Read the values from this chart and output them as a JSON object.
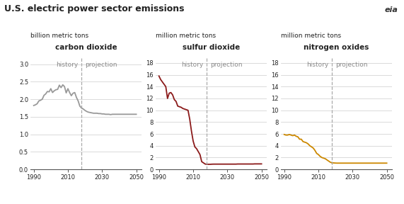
{
  "title": "U.S. electric power sector emissions",
  "panels": [
    {
      "subtitle": "carbon dioxide",
      "unit_label": "billion metric tons",
      "color": "#999999",
      "ylim": [
        0.0,
        3.2
      ],
      "yticks": [
        0.0,
        0.5,
        1.0,
        1.5,
        2.0,
        2.5,
        3.0
      ],
      "yticklabels": [
        "0.0",
        "0.5",
        "1.0",
        "1.5",
        "2.0",
        "2.5",
        "3.0"
      ],
      "history_end": 2018,
      "history_data": {
        "years": [
          1990,
          1991,
          1992,
          1993,
          1994,
          1995,
          1996,
          1997,
          1998,
          1999,
          2000,
          2001,
          2002,
          2003,
          2004,
          2005,
          2006,
          2007,
          2008,
          2009,
          2010,
          2011,
          2012,
          2013,
          2014,
          2015,
          2016,
          2017,
          2018
        ],
        "values": [
          1.82,
          1.84,
          1.87,
          1.95,
          1.97,
          2.0,
          2.11,
          2.15,
          2.22,
          2.21,
          2.3,
          2.19,
          2.24,
          2.27,
          2.28,
          2.4,
          2.33,
          2.41,
          2.36,
          2.18,
          2.3,
          2.19,
          2.1,
          2.17,
          2.19,
          2.05,
          1.95,
          1.8,
          1.75
        ]
      },
      "projection_data": {
        "years": [
          2018,
          2019,
          2020,
          2021,
          2022,
          2023,
          2024,
          2025,
          2026,
          2027,
          2028,
          2029,
          2030,
          2031,
          2032,
          2033,
          2034,
          2035,
          2036,
          2037,
          2038,
          2039,
          2040,
          2041,
          2042,
          2043,
          2044,
          2045,
          2046,
          2047,
          2048,
          2049,
          2050
        ],
        "values": [
          1.75,
          1.72,
          1.68,
          1.65,
          1.63,
          1.62,
          1.61,
          1.6,
          1.6,
          1.6,
          1.59,
          1.59,
          1.58,
          1.58,
          1.57,
          1.57,
          1.57,
          1.56,
          1.57,
          1.57,
          1.57,
          1.57,
          1.57,
          1.57,
          1.57,
          1.57,
          1.57,
          1.57,
          1.57,
          1.57,
          1.57,
          1.57,
          1.57
        ]
      }
    },
    {
      "subtitle": "sulfur dioxide",
      "unit_label": "million metric tons",
      "color": "#8B1A1A",
      "ylim": [
        0,
        19
      ],
      "yticks": [
        0,
        2,
        4,
        6,
        8,
        10,
        12,
        14,
        16,
        18
      ],
      "yticklabels": [
        "0",
        "2",
        "4",
        "6",
        "8",
        "10",
        "12",
        "14",
        "16",
        "18"
      ],
      "history_end": 2018,
      "history_data": {
        "years": [
          1990,
          1991,
          1992,
          1993,
          1994,
          1995,
          1996,
          1997,
          1998,
          1999,
          2000,
          2001,
          2002,
          2003,
          2004,
          2005,
          2006,
          2007,
          2008,
          2009,
          2010,
          2011,
          2012,
          2013,
          2014,
          2015,
          2016,
          2017,
          2018
        ],
        "values": [
          15.8,
          15.2,
          14.8,
          14.4,
          14.0,
          12.0,
          12.9,
          13.0,
          12.6,
          11.8,
          11.5,
          10.7,
          10.6,
          10.5,
          10.3,
          10.2,
          10.1,
          10.0,
          8.5,
          6.5,
          4.8,
          3.8,
          3.5,
          3.0,
          2.5,
          1.3,
          1.1,
          0.9,
          0.85
        ]
      },
      "projection_data": {
        "years": [
          2018,
          2019,
          2020,
          2021,
          2022,
          2023,
          2024,
          2025,
          2026,
          2027,
          2028,
          2029,
          2030,
          2031,
          2032,
          2033,
          2034,
          2035,
          2036,
          2037,
          2038,
          2039,
          2040,
          2041,
          2042,
          2043,
          2044,
          2045,
          2046,
          2047,
          2048,
          2049,
          2050
        ],
        "values": [
          0.85,
          0.85,
          0.85,
          0.87,
          0.88,
          0.88,
          0.88,
          0.88,
          0.88,
          0.88,
          0.88,
          0.88,
          0.88,
          0.88,
          0.88,
          0.88,
          0.88,
          0.88,
          0.9,
          0.9,
          0.9,
          0.9,
          0.9,
          0.9,
          0.9,
          0.9,
          0.9,
          0.9,
          0.92,
          0.92,
          0.92,
          0.92,
          0.92
        ]
      }
    },
    {
      "subtitle": "nitrogen oxides",
      "unit_label": "million metric tons",
      "color": "#CC8800",
      "ylim": [
        0,
        19
      ],
      "yticks": [
        0,
        2,
        4,
        6,
        8,
        10,
        12,
        14,
        16,
        18
      ],
      "yticklabels": [
        "0",
        "2",
        "4",
        "6",
        "8",
        "10",
        "12",
        "14",
        "16",
        "18"
      ],
      "history_end": 2018,
      "history_data": {
        "years": [
          1990,
          1991,
          1992,
          1993,
          1994,
          1995,
          1996,
          1997,
          1998,
          1999,
          2000,
          2001,
          2002,
          2003,
          2004,
          2005,
          2006,
          2007,
          2008,
          2009,
          2010,
          2011,
          2012,
          2013,
          2014,
          2015,
          2016,
          2017,
          2018
        ],
        "values": [
          5.9,
          5.8,
          5.8,
          5.9,
          5.8,
          5.7,
          5.8,
          5.6,
          5.5,
          5.1,
          5.1,
          4.7,
          4.6,
          4.5,
          4.3,
          4.0,
          3.8,
          3.6,
          3.2,
          2.7,
          2.5,
          2.2,
          2.0,
          1.9,
          1.8,
          1.6,
          1.4,
          1.2,
          1.1
        ]
      },
      "projection_data": {
        "years": [
          2018,
          2019,
          2020,
          2021,
          2022,
          2023,
          2024,
          2025,
          2026,
          2027,
          2028,
          2029,
          2030,
          2031,
          2032,
          2033,
          2034,
          2035,
          2036,
          2037,
          2038,
          2039,
          2040,
          2041,
          2042,
          2043,
          2044,
          2045,
          2046,
          2047,
          2048,
          2049,
          2050
        ],
        "values": [
          1.1,
          1.08,
          1.06,
          1.05,
          1.05,
          1.05,
          1.05,
          1.05,
          1.05,
          1.05,
          1.05,
          1.05,
          1.05,
          1.05,
          1.05,
          1.05,
          1.05,
          1.05,
          1.05,
          1.05,
          1.05,
          1.05,
          1.05,
          1.05,
          1.05,
          1.05,
          1.05,
          1.05,
          1.05,
          1.05,
          1.05,
          1.05,
          1.05
        ]
      }
    }
  ],
  "background_color": "#ffffff",
  "grid_color": "#cccccc",
  "dashed_line_color": "#aaaaaa",
  "text_color": "#222222",
  "title_fontsize": 9,
  "unit_label_fontsize": 6.5,
  "subtitle_fontsize": 7.5,
  "tick_fontsize": 6,
  "annotation_fontsize": 6.5,
  "xlim": [
    1988,
    2053
  ],
  "xticks": [
    1990,
    2010,
    2030,
    2050
  ]
}
